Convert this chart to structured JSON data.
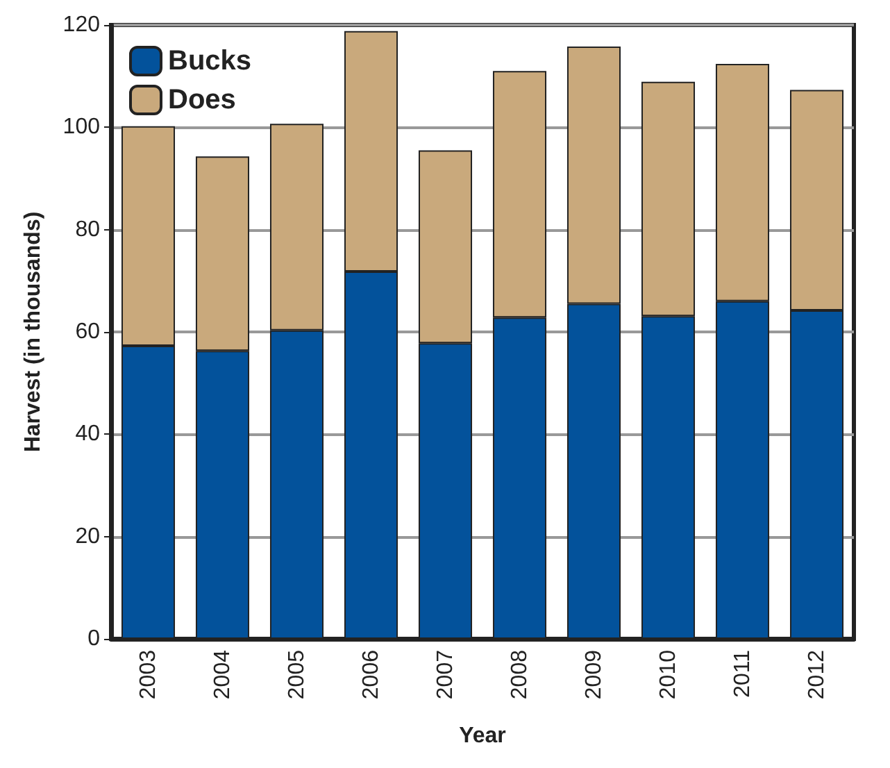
{
  "chart_data": {
    "type": "bar",
    "stacked": true,
    "xlabel": "Year",
    "ylabel": "Harvest (in thousands)",
    "categories": [
      "2003",
      "2004",
      "2005",
      "2006",
      "2007",
      "2008",
      "2009",
      "2010",
      "2011",
      "2012"
    ],
    "series": [
      {
        "name": "Bucks",
        "color": "#03529b",
        "values": [
          57.3,
          56.3,
          60.3,
          71.8,
          57.8,
          62.8,
          65.5,
          63.1,
          66.0,
          64.2
        ]
      },
      {
        "name": "Does",
        "color": "#c9a97c",
        "values": [
          42.9,
          38.0,
          40.4,
          47.0,
          37.7,
          48.2,
          50.3,
          45.8,
          46.4,
          43.1
        ]
      }
    ],
    "ylim": [
      0,
      120
    ],
    "yticks": [
      0,
      20,
      40,
      60,
      80,
      100,
      120
    ],
    "grid": "y",
    "legend": "top left"
  }
}
